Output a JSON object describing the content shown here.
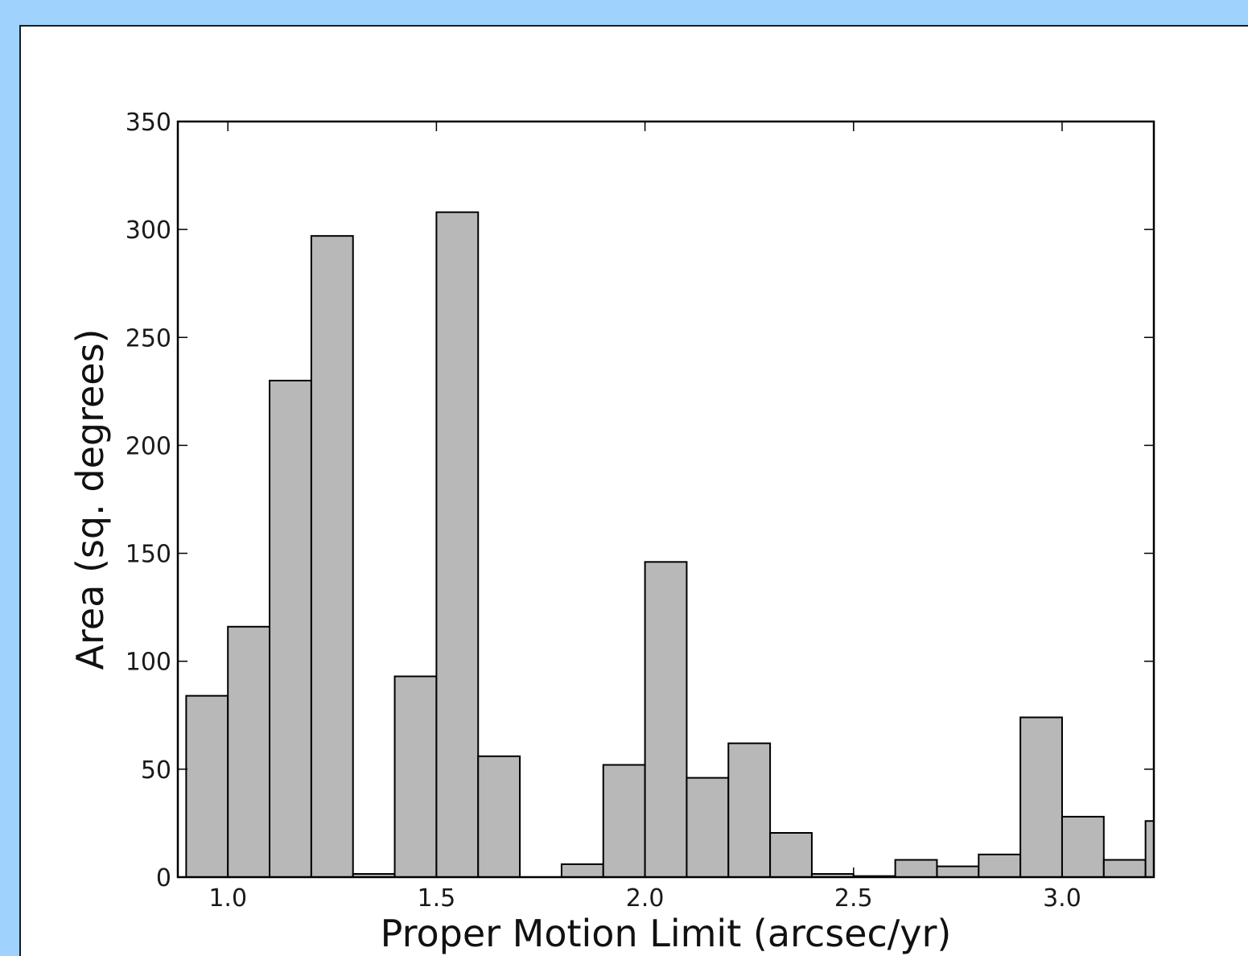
{
  "colors": {
    "page_background": "#9fd3fd",
    "panel_background": "#ffffff",
    "bar_fill": "#b8b8b8",
    "bar_edge": "#000000",
    "axis": "#000000"
  },
  "chart_data": {
    "type": "bar",
    "title": "",
    "xlabel": "Proper Motion Limit (arcsec/yr)",
    "ylabel": "Area (sq. degrees)",
    "xlim": [
      0.88,
      3.22
    ],
    "ylim": [
      0,
      350
    ],
    "xticks": [
      1.0,
      1.5,
      2.0,
      2.5,
      3.0
    ],
    "xtick_labels": [
      "1.0",
      "1.5",
      "2.0",
      "2.5",
      "3.0"
    ],
    "yticks": [
      0,
      50,
      100,
      150,
      200,
      250,
      300,
      350
    ],
    "ytick_labels": [
      "0",
      "50",
      "100",
      "150",
      "200",
      "250",
      "300",
      "350"
    ],
    "bin_width": 0.1,
    "bin_left_edges": [
      0.9,
      1.0,
      1.1,
      1.2,
      1.3,
      1.4,
      1.5,
      1.6,
      1.7,
      1.8,
      1.9,
      2.0,
      2.1,
      2.2,
      2.3,
      2.4,
      2.5,
      2.6,
      2.7,
      2.8,
      2.9,
      3.0,
      3.1,
      3.2
    ],
    "values": [
      84,
      116,
      230,
      297,
      1.5,
      93,
      308,
      56,
      0,
      6,
      52,
      146,
      46,
      62,
      20.5,
      1.5,
      0.5,
      8,
      5,
      10.5,
      74,
      28,
      8,
      26
    ],
    "grid": false,
    "legend": "none"
  }
}
